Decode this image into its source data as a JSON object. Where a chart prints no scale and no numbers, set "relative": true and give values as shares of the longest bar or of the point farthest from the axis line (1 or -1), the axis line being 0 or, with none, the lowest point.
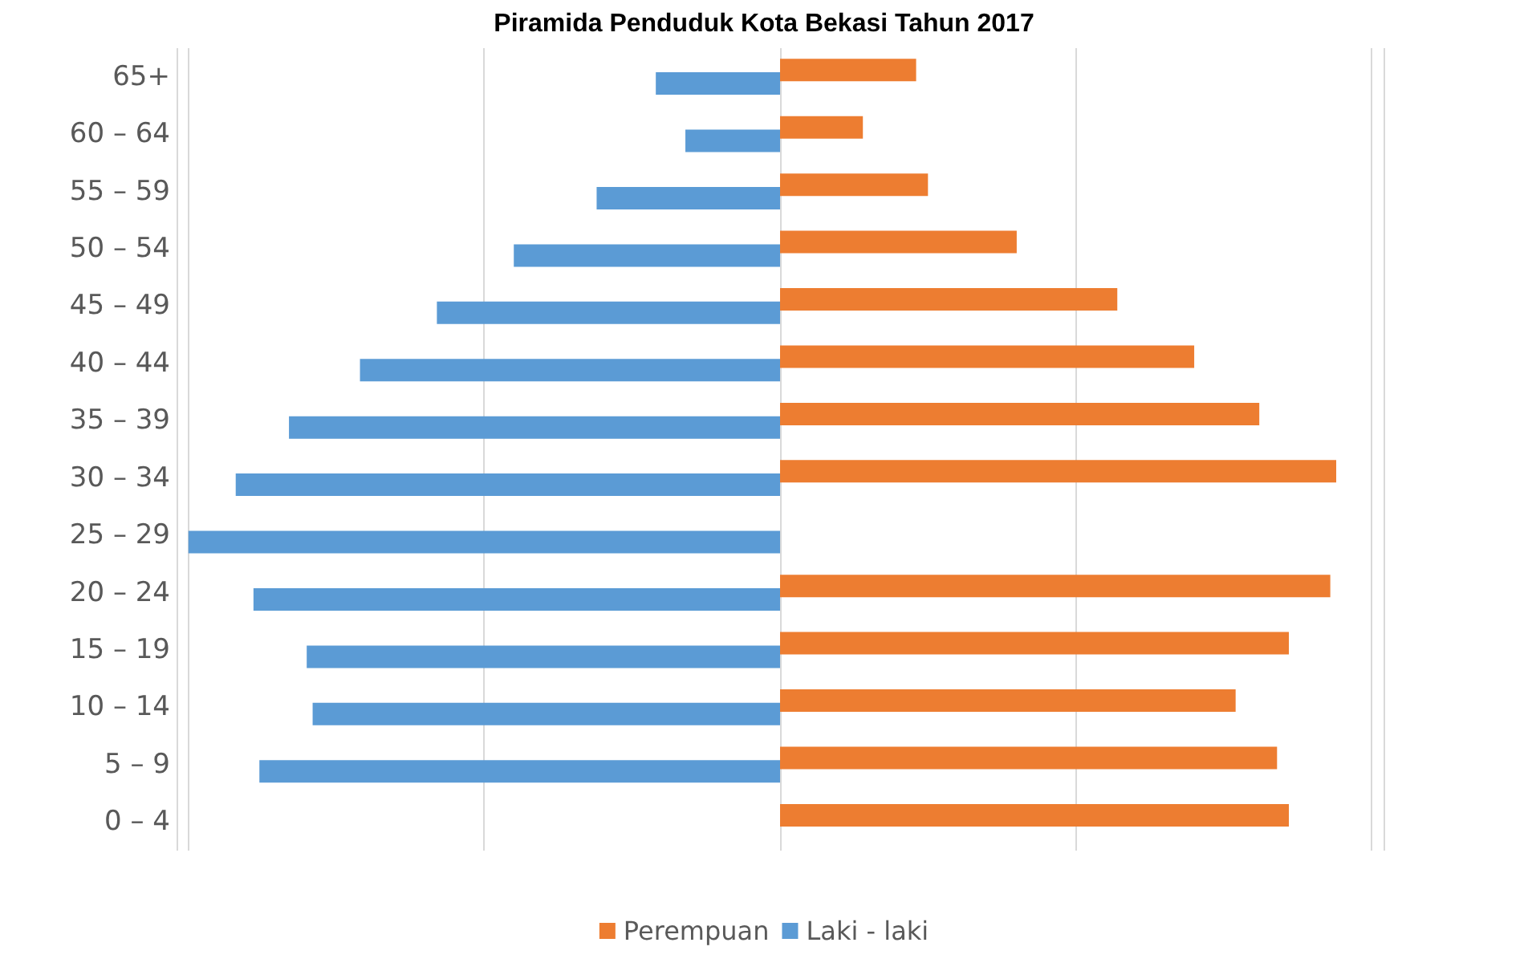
{
  "chart_data": {
    "type": "bar",
    "orientation": "horizontal",
    "relative": true,
    "title": "Piramida Penduduk Kota Bekasi Tahun 2017",
    "categories": [
      "65+",
      "60 – 64",
      "55 – 59",
      "50 – 54",
      "45 – 49",
      "40 – 44",
      "35 – 39",
      "30 – 34",
      "25 – 29",
      "20 – 24",
      "15 – 19",
      "10 – 14",
      "5 – 9",
      "0 – 4"
    ],
    "series": [
      {
        "name": "Perempuan",
        "color": "#ed7d31",
        "values": [
          0.23,
          0.14,
          0.25,
          0.4,
          0.57,
          0.7,
          0.81,
          0.94,
          null,
          0.93,
          0.86,
          0.77,
          0.84,
          0.86
        ]
      },
      {
        "name": "Laki - laki",
        "color": "#5b9bd5",
        "values": [
          -0.21,
          -0.16,
          -0.31,
          -0.45,
          -0.58,
          -0.71,
          -0.83,
          -0.92,
          -1,
          -0.89,
          -0.8,
          -0.79,
          -0.88,
          null
        ]
      }
    ],
    "grid": "x",
    "legend": "bottom"
  }
}
